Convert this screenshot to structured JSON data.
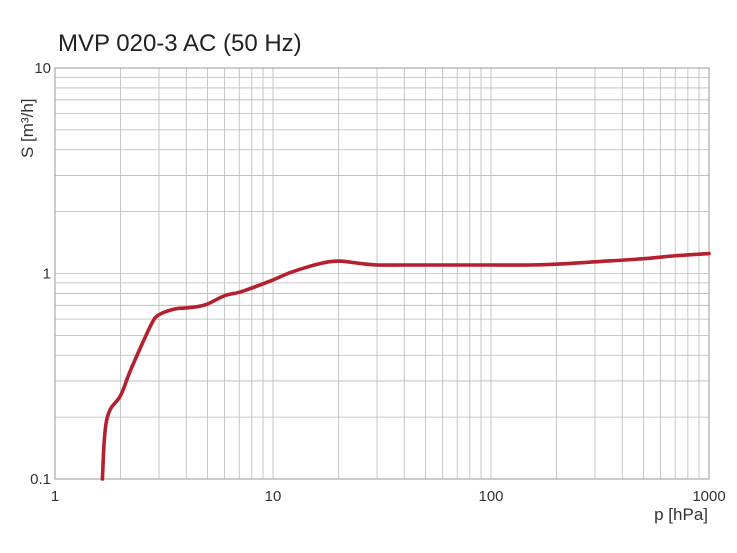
{
  "chart_data": {
    "type": "line",
    "title": "MVP 020-3 AC (50 Hz)",
    "xlabel": "p [hPa]",
    "ylabel": "S [m³/h]",
    "x_scale": "log",
    "y_scale": "log",
    "xlim": [
      1,
      1000
    ],
    "ylim": [
      0.1,
      10
    ],
    "x_ticks": [
      {
        "value": 1,
        "label": "1"
      },
      {
        "value": 10,
        "label": "10"
      },
      {
        "value": 100,
        "label": "100"
      },
      {
        "value": 1000,
        "label": "1000"
      }
    ],
    "y_ticks": [
      {
        "value": 0.1,
        "label": "0.1"
      },
      {
        "value": 1,
        "label": "1"
      },
      {
        "value": 10,
        "label": "10"
      }
    ],
    "grid": true,
    "series": [
      {
        "color": "#b5202e",
        "x": [
          1.65,
          1.68,
          1.72,
          1.8,
          2.0,
          2.2,
          2.5,
          2.8,
          3.0,
          3.5,
          4.0,
          4.5,
          5.0,
          6.0,
          7.0,
          8.0,
          10,
          12,
          15,
          18,
          20,
          22,
          25,
          30,
          40,
          60,
          100,
          150,
          200,
          300,
          500,
          700,
          1000
        ],
        "y": [
          0.1,
          0.15,
          0.19,
          0.22,
          0.255,
          0.33,
          0.45,
          0.58,
          0.63,
          0.67,
          0.68,
          0.69,
          0.71,
          0.78,
          0.81,
          0.85,
          0.93,
          1.01,
          1.09,
          1.14,
          1.15,
          1.14,
          1.12,
          1.1,
          1.1,
          1.1,
          1.1,
          1.1,
          1.11,
          1.14,
          1.18,
          1.22,
          1.25
        ]
      }
    ]
  }
}
